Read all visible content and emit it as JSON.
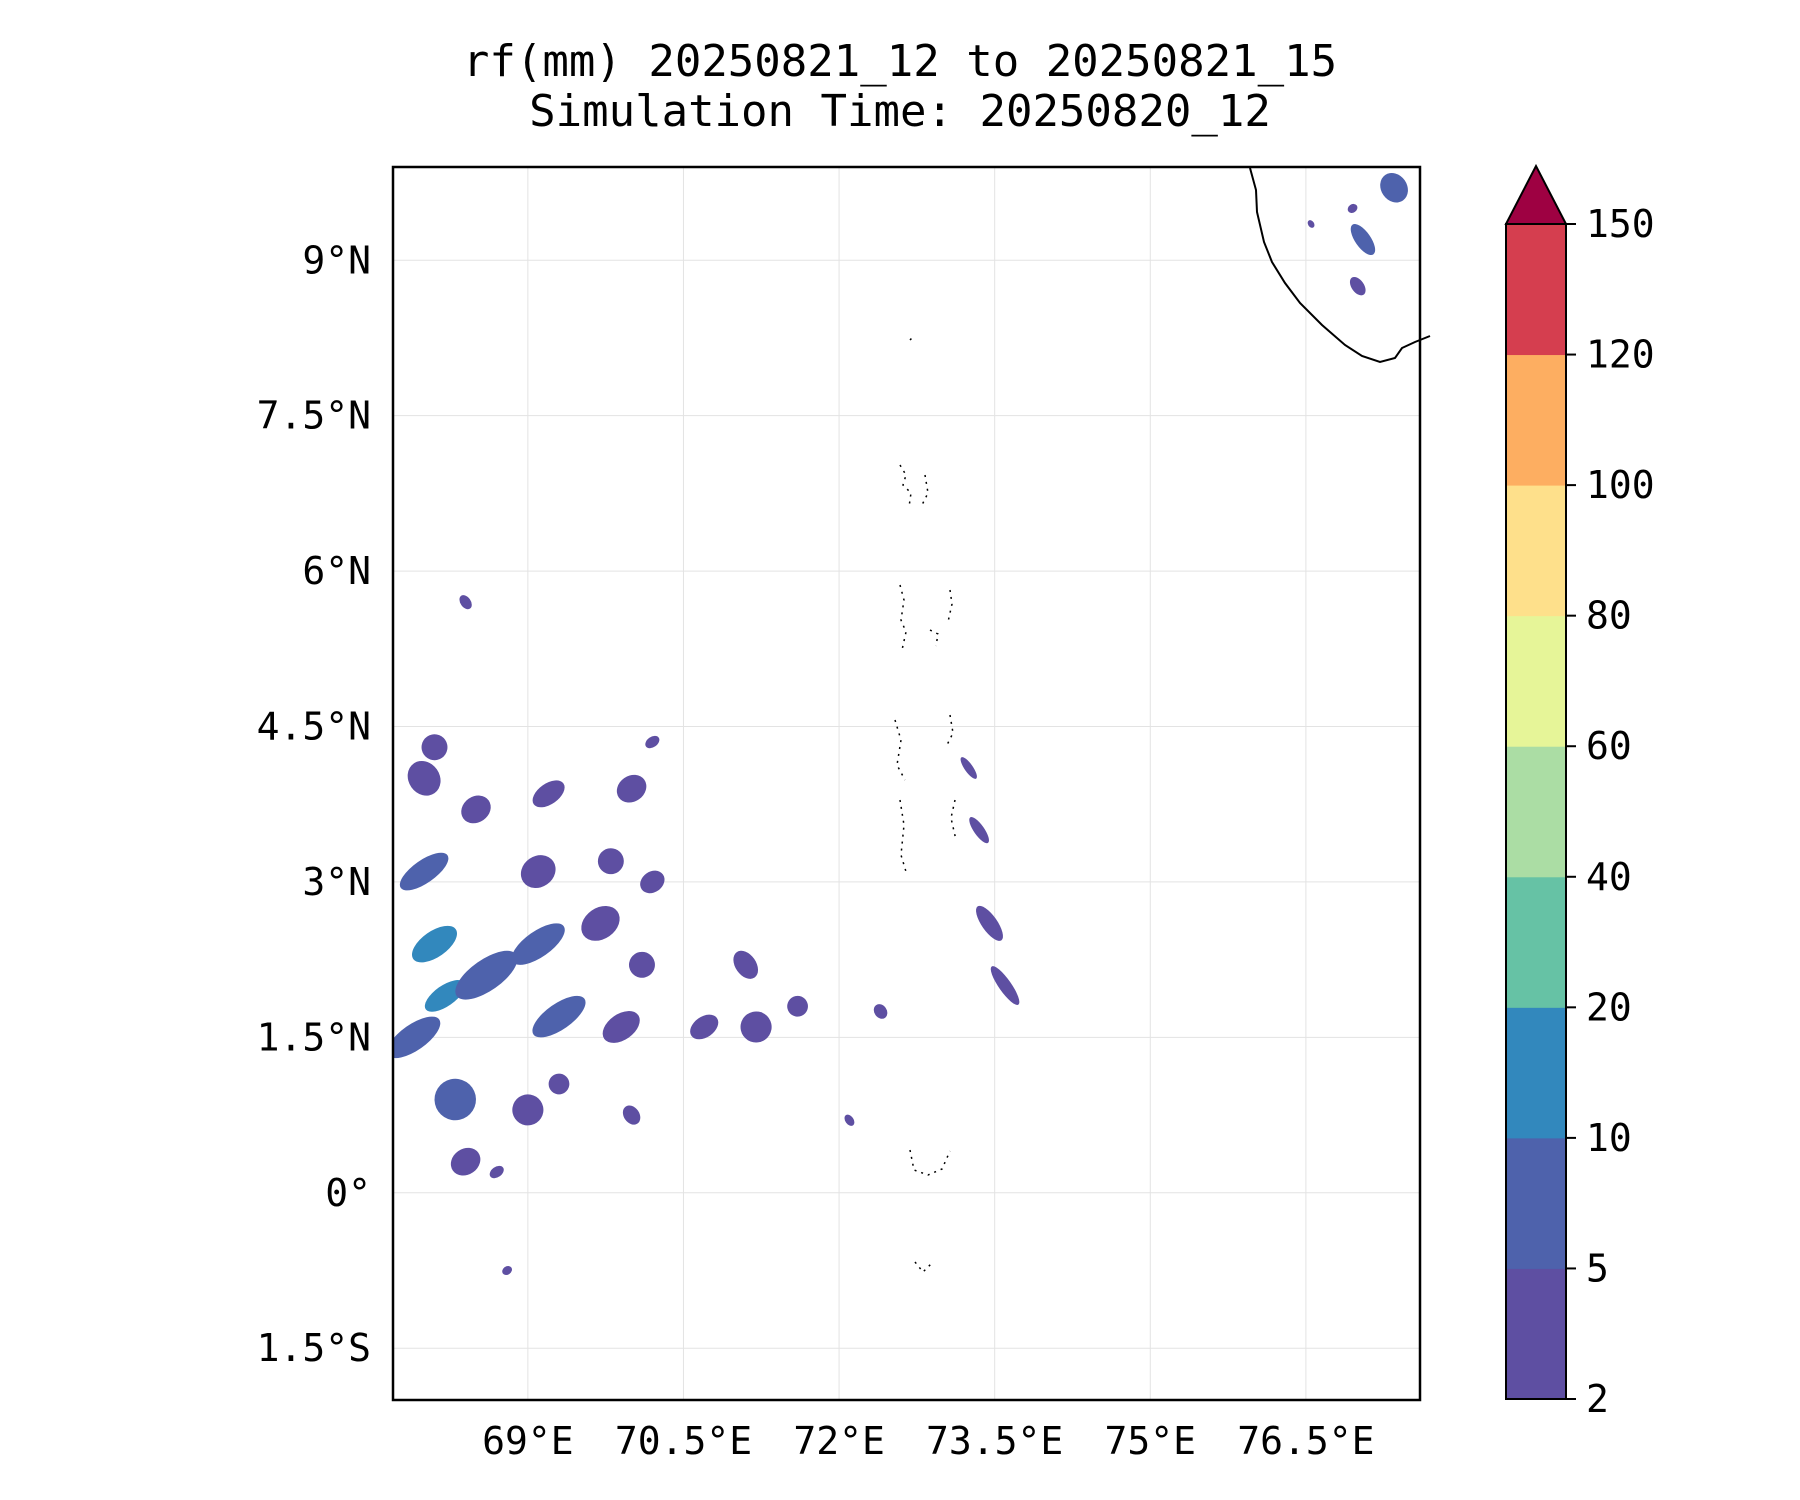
{
  "title": "rf(mm) 20250821_12 to 20250821_15",
  "subtitle": "Simulation Time: 20250820_12",
  "chart_data": {
    "type": "heatmap",
    "title": "rf(mm) 20250821_12 to 20250821_15",
    "subtitle": "Simulation Time: 20250820_12",
    "xlabel": "",
    "ylabel": "",
    "projection": "PlateCarree",
    "grid": true,
    "xlim": [
      67.7,
      77.6
    ],
    "ylim": [
      -2.0,
      9.9
    ],
    "x_ticks": [
      69,
      70.5,
      72,
      73.5,
      75,
      76.5
    ],
    "x_tick_labels": [
      "69°E",
      "70.5°E",
      "72°E",
      "73.5°E",
      "75°E",
      "76.5°E"
    ],
    "y_ticks": [
      -1.5,
      0,
      1.5,
      3,
      4.5,
      6,
      7.5,
      9
    ],
    "y_tick_labels": [
      "1.5°S",
      "0°",
      "1.5°N",
      "3°N",
      "4.5°N",
      "6°N",
      "7.5°N",
      "9°N"
    ],
    "colorbar": {
      "levels": [
        2,
        5,
        10,
        20,
        40,
        60,
        80,
        100,
        120,
        150
      ],
      "level_labels": [
        "2",
        "5",
        "10",
        "20",
        "40",
        "60",
        "80",
        "100",
        "120",
        "150"
      ],
      "colors": [
        "#5e4fa2",
        "#4e62ac",
        "#3288bd",
        "#66c2a5",
        "#abdda4",
        "#e6f598",
        "#fee08b",
        "#fdae61",
        "#d53e4f",
        "#c93e4e"
      ],
      "extend_color": "#9e0142",
      "extend": "max"
    },
    "rain_cells": [
      {
        "lon": 67.9,
        "lat": 1.5,
        "w": 0.6,
        "h": 0.25,
        "bin": 1
      },
      {
        "lon": 68.1,
        "lat": 2.4,
        "w": 0.5,
        "h": 0.25,
        "bin": 2
      },
      {
        "lon": 68.2,
        "lat": 1.9,
        "w": 0.45,
        "h": 0.2,
        "bin": 2
      },
      {
        "lon": 68.0,
        "lat": 3.1,
        "w": 0.55,
        "h": 0.22,
        "bin": 1
      },
      {
        "lon": 68.6,
        "lat": 2.1,
        "w": 0.7,
        "h": 0.3,
        "bin": 1
      },
      {
        "lon": 69.1,
        "lat": 2.4,
        "w": 0.6,
        "h": 0.25,
        "bin": 1
      },
      {
        "lon": 69.3,
        "lat": 1.7,
        "w": 0.6,
        "h": 0.25,
        "bin": 1
      },
      {
        "lon": 68.3,
        "lat": 0.9,
        "w": 0.4,
        "h": 0.4,
        "bin": 1
      },
      {
        "lon": 68.4,
        "lat": 0.3,
        "w": 0.3,
        "h": 0.25,
        "bin": 0
      },
      {
        "lon": 69.0,
        "lat": 0.8,
        "w": 0.3,
        "h": 0.3,
        "bin": 0
      },
      {
        "lon": 69.7,
        "lat": 2.6,
        "w": 0.4,
        "h": 0.3,
        "bin": 0
      },
      {
        "lon": 69.9,
        "lat": 1.6,
        "w": 0.4,
        "h": 0.25,
        "bin": 0
      },
      {
        "lon": 68.5,
        "lat": 3.7,
        "w": 0.3,
        "h": 0.25,
        "bin": 0
      },
      {
        "lon": 69.1,
        "lat": 3.1,
        "w": 0.35,
        "h": 0.3,
        "bin": 0
      },
      {
        "lon": 69.2,
        "lat": 3.85,
        "w": 0.35,
        "h": 0.2,
        "bin": 0
      },
      {
        "lon": 68.1,
        "lat": 4.3,
        "w": 0.25,
        "h": 0.25,
        "bin": 0
      },
      {
        "lon": 69.8,
        "lat": 3.2,
        "w": 0.25,
        "h": 0.25,
        "bin": 0
      },
      {
        "lon": 70.2,
        "lat": 3.0,
        "w": 0.25,
        "h": 0.2,
        "bin": 0
      },
      {
        "lon": 70.1,
        "lat": 2.2,
        "w": 0.25,
        "h": 0.25,
        "bin": 0
      },
      {
        "lon": 70.7,
        "lat": 1.6,
        "w": 0.3,
        "h": 0.2,
        "bin": 0
      },
      {
        "lon": 71.1,
        "lat": 2.2,
        "w": 0.2,
        "h": 0.3,
        "bin": 0
      },
      {
        "lon": 71.2,
        "lat": 1.6,
        "w": 0.3,
        "h": 0.3,
        "bin": 0
      },
      {
        "lon": 71.6,
        "lat": 1.8,
        "w": 0.2,
        "h": 0.2,
        "bin": 0
      },
      {
        "lon": 70.0,
        "lat": 3.9,
        "w": 0.3,
        "h": 0.25,
        "bin": 0
      },
      {
        "lon": 70.2,
        "lat": 4.35,
        "w": 0.15,
        "h": 0.1,
        "bin": 0
      },
      {
        "lon": 68.0,
        "lat": 4.0,
        "w": 0.3,
        "h": 0.35,
        "bin": 0
      },
      {
        "lon": 68.4,
        "lat": 5.7,
        "w": 0.1,
        "h": 0.15,
        "bin": 0
      },
      {
        "lon": 69.3,
        "lat": 1.05,
        "w": 0.2,
        "h": 0.2,
        "bin": 0
      },
      {
        "lon": 70.0,
        "lat": 0.75,
        "w": 0.15,
        "h": 0.2,
        "bin": 0
      },
      {
        "lon": 68.7,
        "lat": 0.2,
        "w": 0.15,
        "h": 0.1,
        "bin": 0
      },
      {
        "lon": 68.8,
        "lat": -0.75,
        "w": 0.1,
        "h": 0.08,
        "bin": 0
      },
      {
        "lon": 73.6,
        "lat": 2.0,
        "w": 0.12,
        "h": 0.45,
        "bin": 0
      },
      {
        "lon": 73.45,
        "lat": 2.6,
        "w": 0.15,
        "h": 0.4,
        "bin": 0
      },
      {
        "lon": 73.35,
        "lat": 3.5,
        "w": 0.1,
        "h": 0.3,
        "bin": 0
      },
      {
        "lon": 73.25,
        "lat": 4.1,
        "w": 0.08,
        "h": 0.25,
        "bin": 0
      },
      {
        "lon": 72.4,
        "lat": 1.75,
        "w": 0.12,
        "h": 0.15,
        "bin": 0
      },
      {
        "lon": 72.1,
        "lat": 0.7,
        "w": 0.08,
        "h": 0.12,
        "bin": 0
      },
      {
        "lon": 77.05,
        "lat": 9.2,
        "w": 0.15,
        "h": 0.35,
        "bin": 1
      },
      {
        "lon": 77.35,
        "lat": 9.7,
        "w": 0.25,
        "h": 0.3,
        "bin": 1
      },
      {
        "lon": 77.0,
        "lat": 8.75,
        "w": 0.12,
        "h": 0.2,
        "bin": 0
      },
      {
        "lon": 76.95,
        "lat": 9.5,
        "w": 0.1,
        "h": 0.08,
        "bin": 0
      },
      {
        "lon": 76.55,
        "lat": 9.35,
        "w": 0.05,
        "h": 0.08,
        "bin": 0
      }
    ]
  }
}
